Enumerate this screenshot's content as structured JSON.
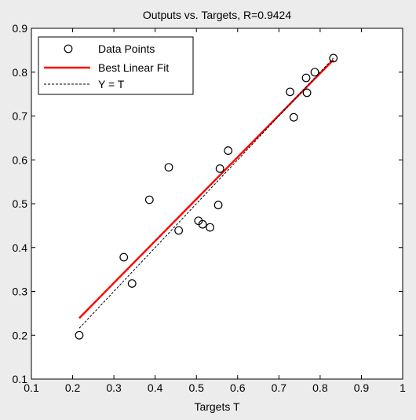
{
  "chart_data": {
    "type": "scatter",
    "title": "Outputs vs. Targets, R=0.9424",
    "xlabel": "Targets T",
    "ylabel": "",
    "xlim": [
      0.1,
      1
    ],
    "ylim": [
      0.1,
      0.9
    ],
    "x_ticks": [
      "0.1",
      "0.2",
      "0.3",
      "0.4",
      "0.5",
      "0.6",
      "0.7",
      "0.8",
      "0.9",
      "1"
    ],
    "y_ticks": [
      "0.1",
      "0.2",
      "0.3",
      "0.4",
      "0.5",
      "0.6",
      "0.7",
      "0.8",
      "0.9"
    ],
    "grid": false,
    "legend_position": "top-left",
    "series": [
      {
        "name": "Data Points",
        "kind": "scatter",
        "marker": "open-circle",
        "color": "#000000",
        "points": [
          {
            "x": 0.216,
            "y": 0.2
          },
          {
            "x": 0.324,
            "y": 0.378
          },
          {
            "x": 0.344,
            "y": 0.318
          },
          {
            "x": 0.386,
            "y": 0.509
          },
          {
            "x": 0.433,
            "y": 0.583
          },
          {
            "x": 0.457,
            "y": 0.439
          },
          {
            "x": 0.505,
            "y": 0.461
          },
          {
            "x": 0.515,
            "y": 0.453
          },
          {
            "x": 0.533,
            "y": 0.446
          },
          {
            "x": 0.553,
            "y": 0.497
          },
          {
            "x": 0.557,
            "y": 0.58
          },
          {
            "x": 0.577,
            "y": 0.621
          },
          {
            "x": 0.727,
            "y": 0.755
          },
          {
            "x": 0.736,
            "y": 0.697
          },
          {
            "x": 0.766,
            "y": 0.787
          },
          {
            "x": 0.768,
            "y": 0.753
          },
          {
            "x": 0.787,
            "y": 0.8
          },
          {
            "x": 0.832,
            "y": 0.832
          }
        ]
      },
      {
        "name": "Best Linear Fit",
        "kind": "line",
        "color": "#ff0000",
        "points": [
          {
            "x": 0.216,
            "y": 0.239
          },
          {
            "x": 0.832,
            "y": 0.828
          }
        ]
      },
      {
        "name": "Y = T",
        "kind": "dashed-line",
        "color": "#000000",
        "points": [
          {
            "x": 0.216,
            "y": 0.216
          },
          {
            "x": 0.832,
            "y": 0.832
          }
        ]
      }
    ]
  }
}
